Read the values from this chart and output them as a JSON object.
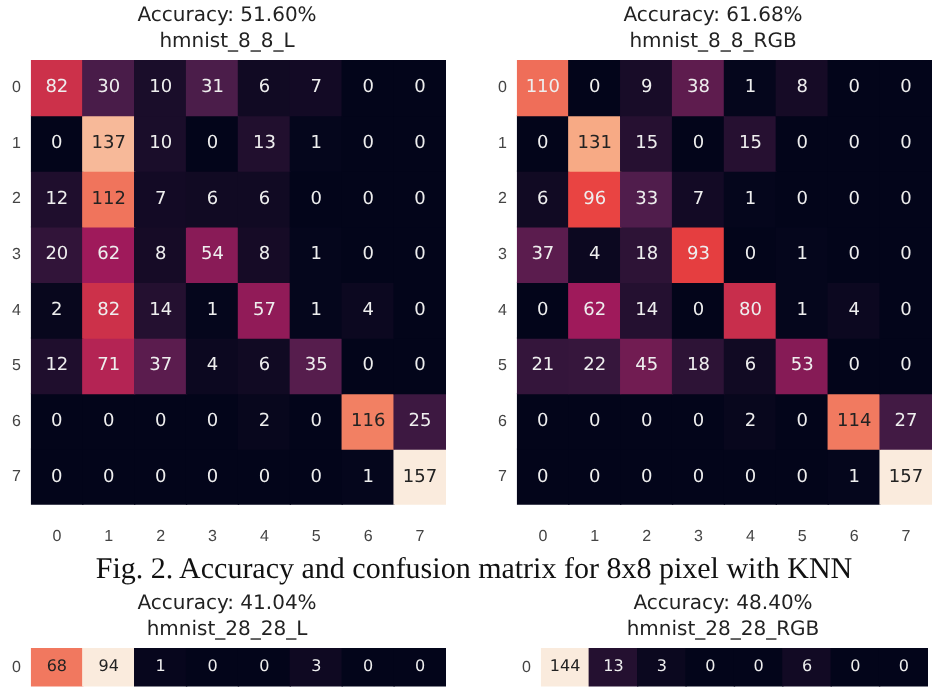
{
  "chart_data": [
    {
      "type": "heatmap",
      "data_labels": true,
      "title": "Accuracy: 51.60%",
      "subtitle": "hmnist_8_8_L",
      "categories": [
        "0",
        "1",
        "2",
        "3",
        "4",
        "5",
        "6",
        "7"
      ],
      "y_categories": [
        "0",
        "1",
        "2",
        "3",
        "4",
        "5",
        "6",
        "7"
      ],
      "cells": [
        [
          82,
          30,
          10,
          31,
          6,
          7,
          0,
          0
        ],
        [
          0,
          137,
          10,
          0,
          13,
          1,
          0,
          0
        ],
        [
          12,
          112,
          7,
          6,
          6,
          0,
          0,
          0
        ],
        [
          20,
          62,
          8,
          54,
          8,
          1,
          0,
          0
        ],
        [
          2,
          82,
          14,
          1,
          57,
          1,
          4,
          0
        ],
        [
          12,
          71,
          37,
          4,
          6,
          35,
          0,
          0
        ],
        [
          0,
          0,
          0,
          0,
          2,
          0,
          116,
          25
        ],
        [
          0,
          0,
          0,
          0,
          0,
          0,
          1,
          157
        ]
      ],
      "annotations": [
        "Fig. 2. Accuracy and confusion matrix for 8x8 pixel with KNN"
      ]
    },
    {
      "type": "heatmap",
      "data_labels": true,
      "title": "Accuracy: 61.68%",
      "subtitle": "hmnist_8_8_RGB",
      "categories": [
        "0",
        "1",
        "2",
        "3",
        "4",
        "5",
        "6",
        "7"
      ],
      "y_categories": [
        "0",
        "1",
        "2",
        "3",
        "4",
        "5",
        "6",
        "7"
      ],
      "cells": [
        [
          110,
          0,
          9,
          38,
          1,
          8,
          0,
          0
        ],
        [
          0,
          131,
          15,
          0,
          15,
          0,
          0,
          0
        ],
        [
          6,
          96,
          33,
          7,
          1,
          0,
          0,
          0
        ],
        [
          37,
          4,
          18,
          93,
          0,
          1,
          0,
          0
        ],
        [
          0,
          62,
          14,
          0,
          80,
          1,
          4,
          0
        ],
        [
          21,
          22,
          45,
          18,
          6,
          53,
          0,
          0
        ],
        [
          0,
          0,
          0,
          0,
          2,
          0,
          114,
          27
        ],
        [
          0,
          0,
          0,
          0,
          0,
          0,
          1,
          157
        ]
      ]
    },
    {
      "type": "heatmap",
      "data_labels": true,
      "title": "Accuracy: 41.04%",
      "subtitle": "hmnist_28_28_L",
      "categories": [
        null,
        null,
        null,
        null,
        null,
        null,
        null,
        null
      ],
      "y_categories": [
        "0"
      ],
      "tick_labels": "y",
      "cells": [
        [
          68,
          94,
          1,
          0,
          0,
          3,
          0,
          0
        ]
      ]
    },
    {
      "type": "heatmap",
      "data_labels": true,
      "title": "Accuracy: 48.40%",
      "subtitle": "hmnist_28_28_RGB",
      "categories": [
        null,
        null,
        null,
        null,
        null,
        null,
        null,
        null
      ],
      "y_categories": [
        "0"
      ],
      "tick_labels": "y",
      "cells": [
        [
          144,
          13,
          3,
          0,
          0,
          6,
          0,
          0
        ]
      ]
    }
  ]
}
